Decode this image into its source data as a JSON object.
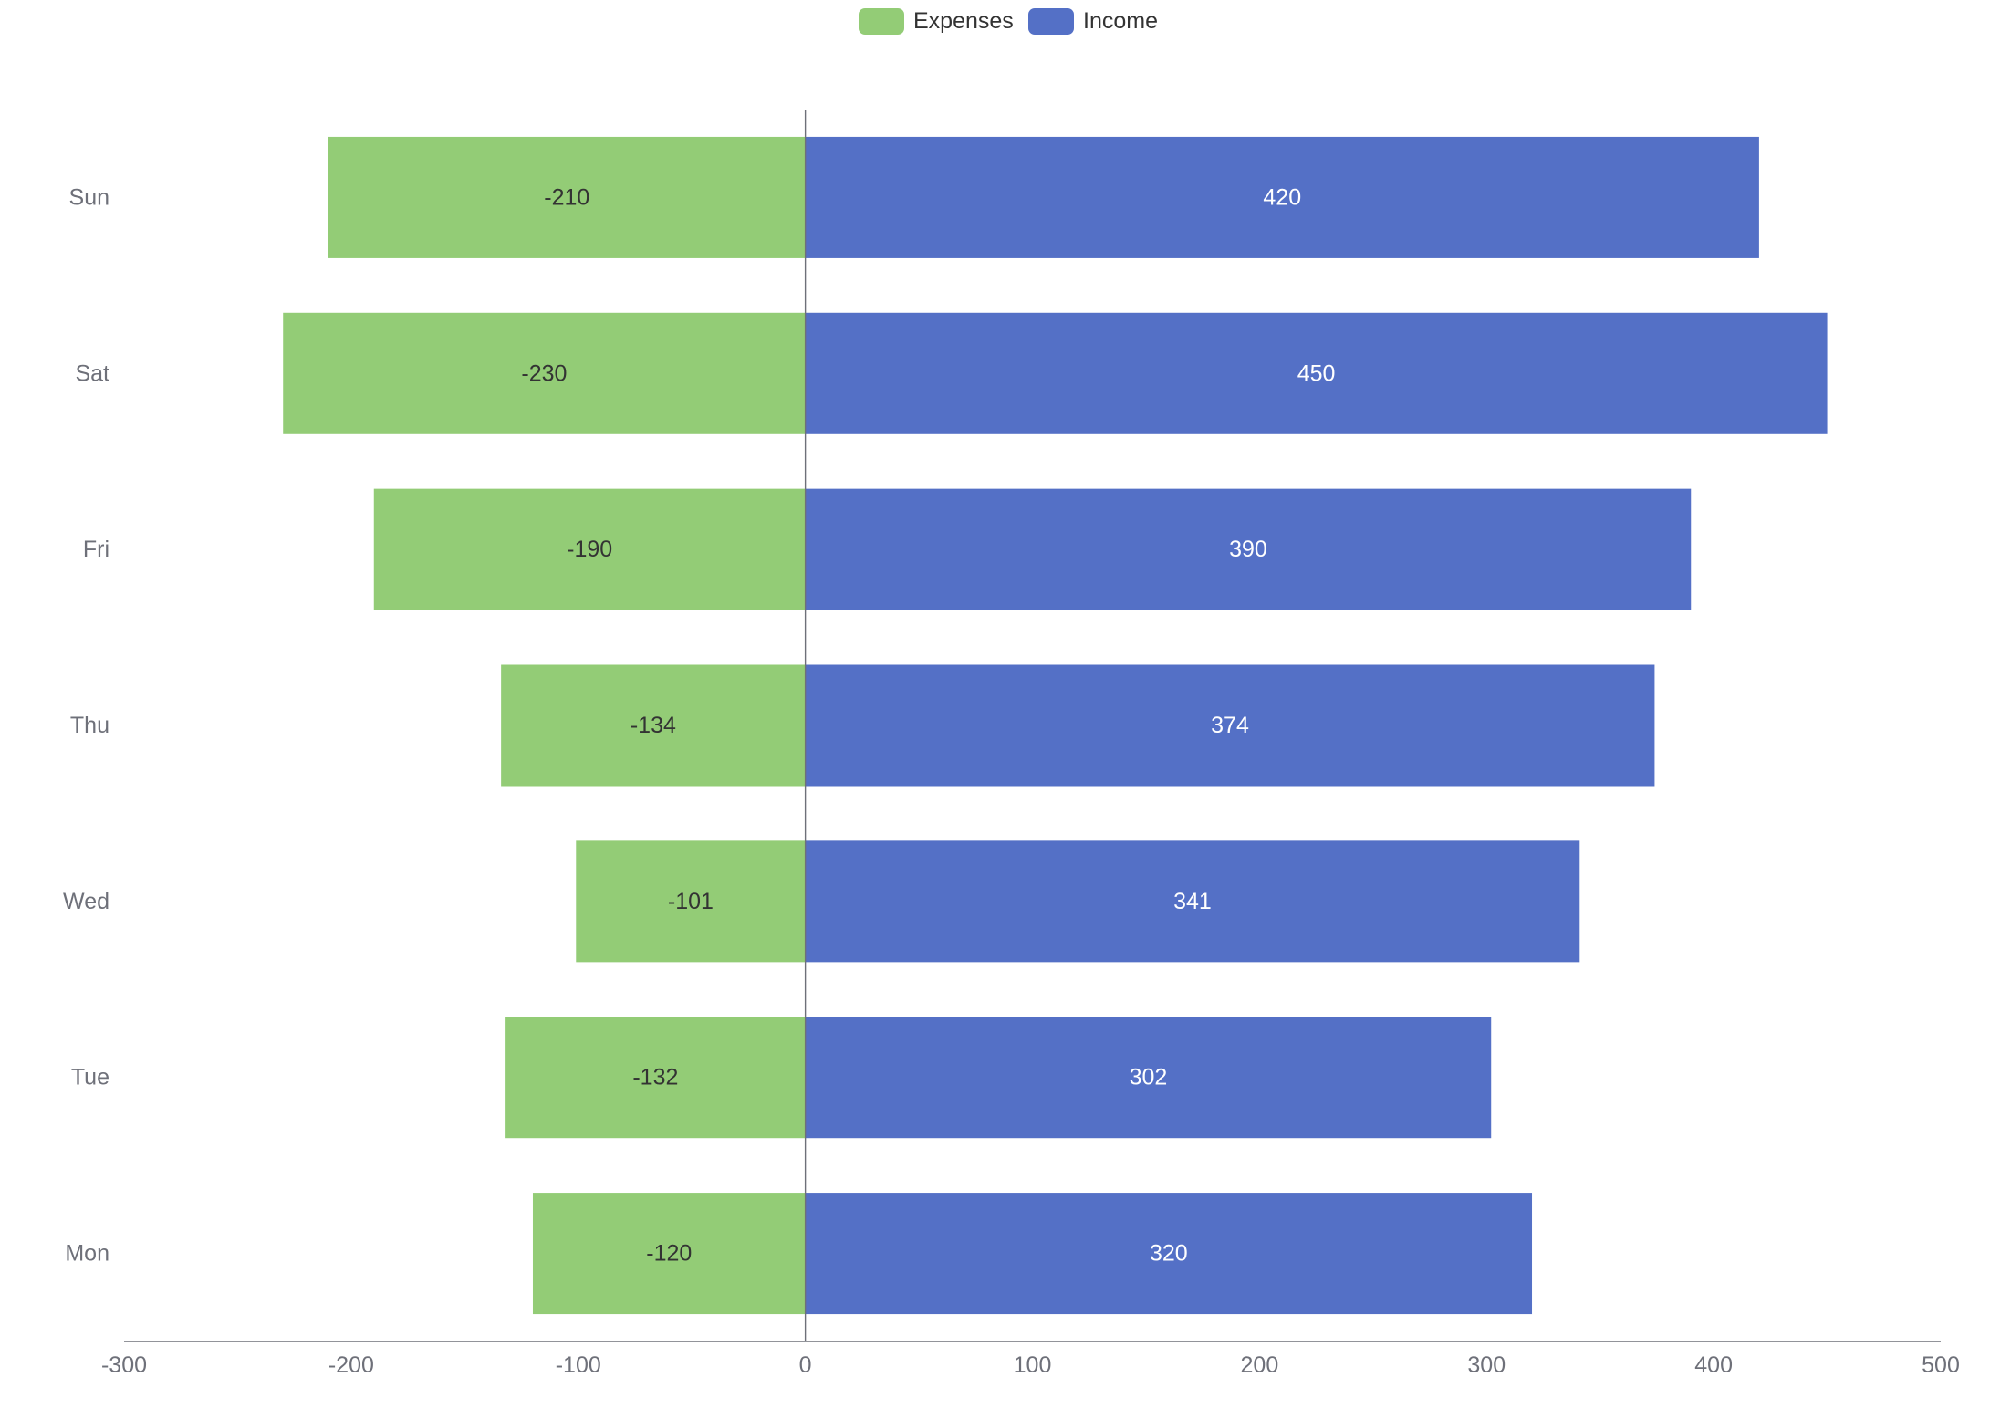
{
  "chart_data": {
    "type": "bar",
    "orientation": "horizontal",
    "stacked": true,
    "categories": [
      "Mon",
      "Tue",
      "Wed",
      "Thu",
      "Fri",
      "Sat",
      "Sun"
    ],
    "series": [
      {
        "name": "Expenses",
        "color": "#93cc76",
        "values": [
          -120,
          -132,
          -101,
          -134,
          -190,
          -230,
          -210
        ]
      },
      {
        "name": "Income",
        "color": "#5470c6",
        "values": [
          320,
          302,
          341,
          374,
          390,
          450,
          420
        ]
      }
    ],
    "x_ticks": [
      -300,
      -200,
      -100,
      0,
      100,
      200,
      300,
      400,
      500
    ],
    "xlim": [
      -300,
      500
    ],
    "title": "",
    "xlabel": "",
    "ylabel": "",
    "grid": false,
    "legend": "top-center",
    "data_labels": "inside"
  }
}
